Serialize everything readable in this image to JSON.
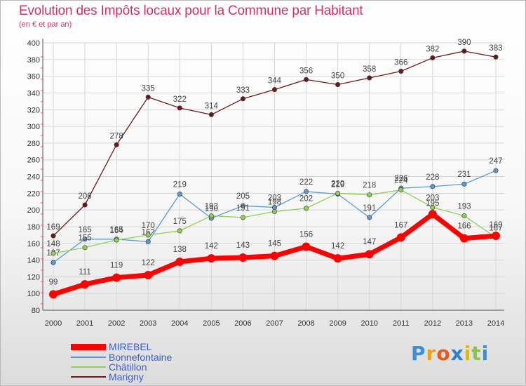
{
  "title": "Evolution des Impôts locaux pour la Commune par Habitant",
  "subtitle": "(en € et par an)",
  "logo": "Proxiti",
  "colors": {
    "mirebel": "#ff0000",
    "bonnefontaine": "#5b9bd5",
    "chatillon": "#92d050",
    "marigny": "#6b1a1a",
    "title": "#d1306e",
    "legend_text": "#3d5cc9"
  },
  "chart_data": {
    "type": "line",
    "title": "Evolution des Impôts locaux pour la Commune par Habitant",
    "subtitle": "(en € et par an)",
    "xlabel": "",
    "ylabel": "",
    "x": [
      "2000",
      "2001",
      "2002",
      "2003",
      "2004",
      "2005",
      "2006",
      "2007",
      "2008",
      "2009",
      "2010",
      "2011",
      "2012",
      "2013",
      "2014"
    ],
    "ylim": [
      80,
      400
    ],
    "yticks": [
      80,
      100,
      120,
      140,
      160,
      180,
      200,
      220,
      240,
      260,
      280,
      300,
      320,
      340,
      360,
      380,
      400
    ],
    "grid": true,
    "legend": "bottom-left",
    "series": [
      {
        "name": "MIREBEL",
        "color": "#ff0000",
        "values": [
          99,
          111,
          119,
          122,
          138,
          142,
          143,
          145,
          156,
          142,
          147,
          167,
          195,
          166,
          169
        ],
        "labels": [
          "99",
          "111",
          "119",
          "122",
          "138",
          "142",
          "143",
          "145",
          "156",
          "142",
          "147",
          "167",
          "",
          "166",
          ""
        ]
      },
      {
        "name": "Bonnefontaine",
        "color": "#5b9bd5",
        "values": [
          137,
          165,
          165,
          162,
          219,
          190,
          205,
          203,
          222,
          219,
          191,
          226,
          228,
          231,
          247
        ],
        "labels": [
          "137",
          "165",
          "165",
          "162",
          "219",
          "190",
          "205",
          "203",
          "222",
          "219",
          "191",
          "226",
          "228",
          "231",
          "247"
        ]
      },
      {
        "name": "Châtillon",
        "color": "#92d050",
        "values": [
          148,
          155,
          164,
          170,
          175,
          193,
          191,
          198,
          202,
          220,
          218,
          224,
          203,
          193,
          167
        ],
        "labels": [
          "148",
          "155",
          "164",
          "170",
          "175",
          "193",
          "191",
          "198",
          "202",
          "220",
          "218",
          "224",
          "203",
          "193",
          "167"
        ]
      },
      {
        "name": "Marigny",
        "color": "#6b1a1a",
        "values": [
          169,
          206,
          278,
          335,
          322,
          314,
          333,
          344,
          356,
          350,
          358,
          366,
          382,
          390,
          383
        ],
        "labels": [
          "169",
          "206",
          "278",
          "335",
          "322",
          "314",
          "333",
          "344",
          "356",
          "350",
          "358",
          "366",
          "382",
          "390",
          "383"
        ]
      }
    ],
    "extra_labels": [
      {
        "text": "195",
        "x": "2012",
        "y": 195
      },
      {
        "text": "169",
        "x": "2014",
        "y": 169
      }
    ]
  }
}
